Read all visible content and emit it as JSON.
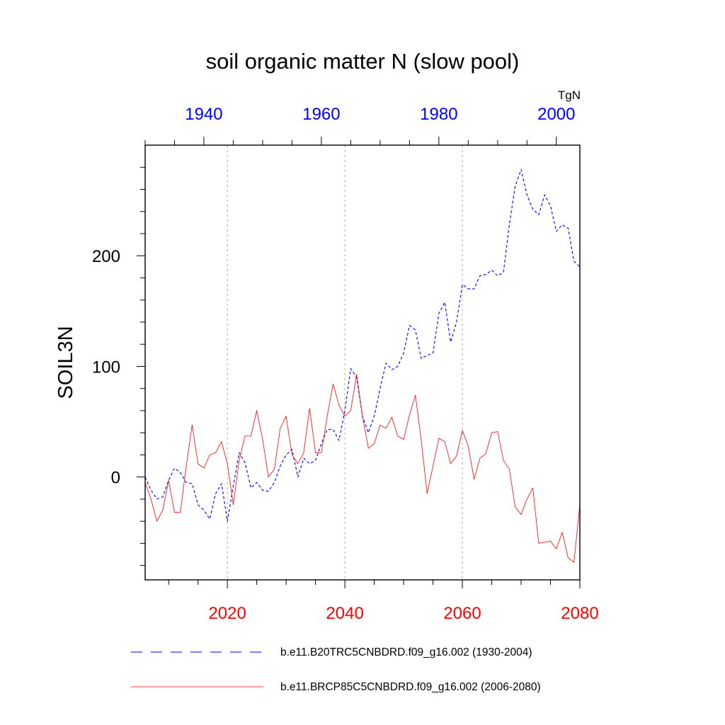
{
  "chart_data": {
    "type": "line",
    "title": "soil organic matter N (slow pool)",
    "ylabel": "SOIL3N",
    "units": "TgN",
    "ylim": [
      -93,
      300
    ],
    "yticks": [
      {
        "value": 0,
        "label": "0"
      },
      {
        "value": 100,
        "label": "100"
      },
      {
        "value": 200,
        "label": "200"
      }
    ],
    "top_axis": {
      "range": [
        1930,
        2004
      ],
      "color": "#0000ff",
      "ticks": [
        {
          "value": 1940,
          "label": "1940"
        },
        {
          "value": 1960,
          "label": "1960"
        },
        {
          "value": 1980,
          "label": "1980"
        },
        {
          "value": 2000,
          "label": "2000"
        }
      ]
    },
    "bottom_axis": {
      "range": [
        2006,
        2080
      ],
      "color": "#ff0000",
      "ticks": [
        {
          "value": 2020,
          "label": "2020"
        },
        {
          "value": 2040,
          "label": "2040"
        },
        {
          "value": 2060,
          "label": "2060"
        },
        {
          "value": 2080,
          "label": "2080"
        }
      ]
    },
    "grid": "dotted vertical at bottom-axis major ticks",
    "series": [
      {
        "name": "b.e11.B20TRC5CNBDRD.f09_g16.002 (1930-2004)",
        "axis": "top",
        "color": "#0000ff",
        "style": "dashed",
        "x_start": 1930,
        "values": [
          0,
          -12,
          -20,
          -18,
          -3,
          8,
          4,
          -5,
          -6,
          -25,
          -30,
          -38,
          -15,
          -6,
          -40,
          -8,
          22,
          13,
          -10,
          -5,
          -12,
          -13,
          -5,
          10,
          20,
          25,
          0,
          17,
          12,
          15,
          30,
          43,
          43,
          33,
          60,
          98,
          90,
          55,
          40,
          55,
          80,
          103,
          97,
          100,
          112,
          137,
          133,
          107,
          110,
          112,
          148,
          158,
          122,
          140,
          174,
          170,
          170,
          182,
          183,
          187,
          182,
          185,
          228,
          263,
          278,
          255,
          242,
          237,
          255,
          245,
          222,
          228,
          225,
          195,
          190
        ]
      },
      {
        "name": "b.e11.BRCP85C5CNBDRD.f09_g16.002 (2006-2080)",
        "axis": "bottom",
        "color": "#ff0000",
        "style": "solid",
        "x_start": 2006,
        "values": [
          -5,
          -20,
          -40,
          -30,
          -3,
          -32,
          -32,
          10,
          47,
          12,
          8,
          20,
          22,
          32,
          12,
          -25,
          15,
          37,
          37,
          60,
          34,
          0,
          7,
          44,
          55,
          20,
          12,
          22,
          62,
          22,
          22,
          55,
          84,
          65,
          55,
          60,
          93,
          55,
          26,
          30,
          47,
          44,
          54,
          37,
          34,
          56,
          74,
          33,
          -15,
          10,
          35,
          32,
          12,
          19,
          42,
          28,
          -2,
          17,
          21,
          40,
          41,
          15,
          7,
          -27,
          -34,
          -20,
          -10,
          -60,
          -59,
          -58,
          -65,
          -50,
          -73,
          -77,
          -25
        ]
      }
    ],
    "legend": {
      "placement": "bottom"
    }
  }
}
